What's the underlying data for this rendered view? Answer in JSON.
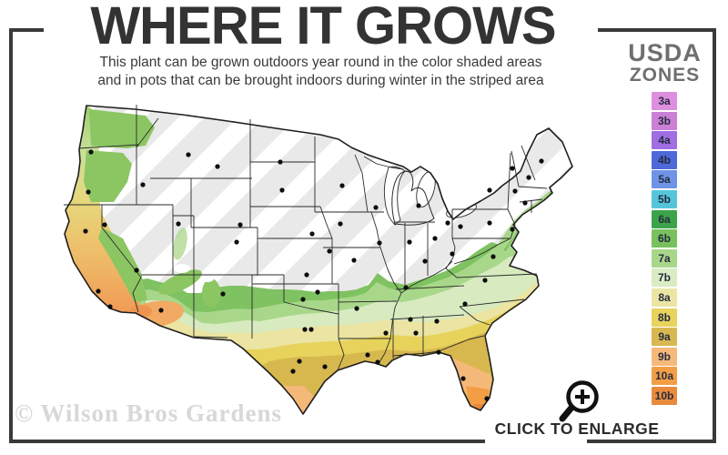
{
  "title": "WHERE IT GROWS",
  "subtitle": {
    "line1": "This plant can be grown outdoors year round in the color shaded areas",
    "line2": "and in pots that can be brought indoors during winter in the striped area"
  },
  "legend": {
    "heading_line1": "USDA",
    "heading_line2": "ZONES",
    "zones": [
      {
        "label": "3a",
        "color": "#de8ede"
      },
      {
        "label": "3b",
        "color": "#cb7fd5"
      },
      {
        "label": "4a",
        "color": "#a06ee3"
      },
      {
        "label": "4b",
        "color": "#4e69da"
      },
      {
        "label": "5a",
        "color": "#6f94e7"
      },
      {
        "label": "5b",
        "color": "#55c6d9"
      },
      {
        "label": "6a",
        "color": "#3ba44b"
      },
      {
        "label": "6b",
        "color": "#78c15e"
      },
      {
        "label": "7a",
        "color": "#a9d78a"
      },
      {
        "label": "7b",
        "color": "#d9ecc3"
      },
      {
        "label": "8a",
        "color": "#ece6a5"
      },
      {
        "label": "8b",
        "color": "#e8d45c"
      },
      {
        "label": "9a",
        "color": "#d8b950"
      },
      {
        "label": "9b",
        "color": "#f5ba79"
      },
      {
        "label": "10a",
        "color": "#f39e45"
      },
      {
        "label": "10b",
        "color": "#e88b3c"
      }
    ]
  },
  "watermark": "© Wilson Bros Gardens",
  "enlarge_label": "CLICK TO ENLARGE"
}
